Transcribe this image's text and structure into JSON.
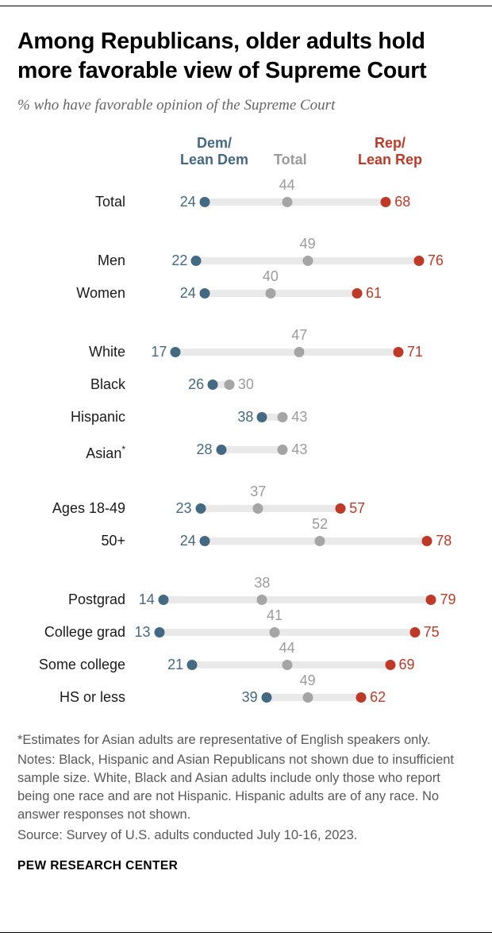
{
  "page": {
    "title": "Among Republicans, older adults hold more favorable view of Supreme Court",
    "subtitle": "% who have favorable opinion of the Supreme Court",
    "brand": "PEW RESEARCH CENTER"
  },
  "notes": {
    "asterisk": "*Estimates for Asian adults are representative of English speakers only.",
    "body": "Notes: Black, Hispanic and Asian Republicans not shown due to insufficient sample size. White, Black and Asian adults include only those who report being one race and are not Hispanic. Hispanic adults are of any race. No answer responses not shown.",
    "source": "Source: Survey of U.S. adults conducted July 10-16, 2023."
  },
  "chart_data": {
    "type": "scatter",
    "subtype": "dot-plot",
    "title": "Among Republicans, older adults hold more favorable view of Supreme Court",
    "subtitle": "% who have favorable opinion of the Supreme Court",
    "headers": {
      "dem": "Dem/\nLean Dem",
      "total": "Total",
      "rep": "Rep/\nLean Rep"
    },
    "colors": {
      "dem": "#436983",
      "rep": "#bf3927",
      "total_num": "#9b9b9b",
      "total_dot": "#a5a5a5",
      "track": "#e9e9e9"
    },
    "xlim": [
      0,
      100
    ],
    "scale": {
      "min": 7.5,
      "max": 89.5
    },
    "legend_position": "top",
    "grid": false,
    "groups": [
      {
        "rows": [
          {
            "label": "Total",
            "dem": 24,
            "total": 44,
            "rep": 68
          }
        ]
      },
      {
        "rows": [
          {
            "label": "Men",
            "dem": 22,
            "total": 49,
            "rep": 76
          },
          {
            "label": "Women",
            "dem": 24,
            "total": 40,
            "rep": 61
          }
        ]
      },
      {
        "rows": [
          {
            "label": "White",
            "dem": 17,
            "total": 47,
            "rep": 71
          },
          {
            "label": "Black",
            "dem": 26,
            "total": 30,
            "rep": null
          },
          {
            "label": "Hispanic",
            "dem": 38,
            "total": 43,
            "rep": null
          },
          {
            "label": "Asian",
            "label_sup": "*",
            "dem": 28,
            "total": 43,
            "rep": null
          }
        ]
      },
      {
        "rows": [
          {
            "label": "Ages 18-49",
            "dem": 23,
            "total": 37,
            "rep": 57
          },
          {
            "label": "50+",
            "dem": 24,
            "total": 52,
            "rep": 78
          }
        ]
      },
      {
        "rows": [
          {
            "label": "Postgrad",
            "dem": 14,
            "total": 38,
            "rep": 79
          },
          {
            "label": "College grad",
            "dem": 13,
            "total": 41,
            "rep": 75
          },
          {
            "label": "Some college",
            "dem": 21,
            "total": 44,
            "rep": 69
          },
          {
            "label": "HS or less",
            "dem": 39,
            "total": 49,
            "rep": 62
          }
        ]
      }
    ]
  }
}
